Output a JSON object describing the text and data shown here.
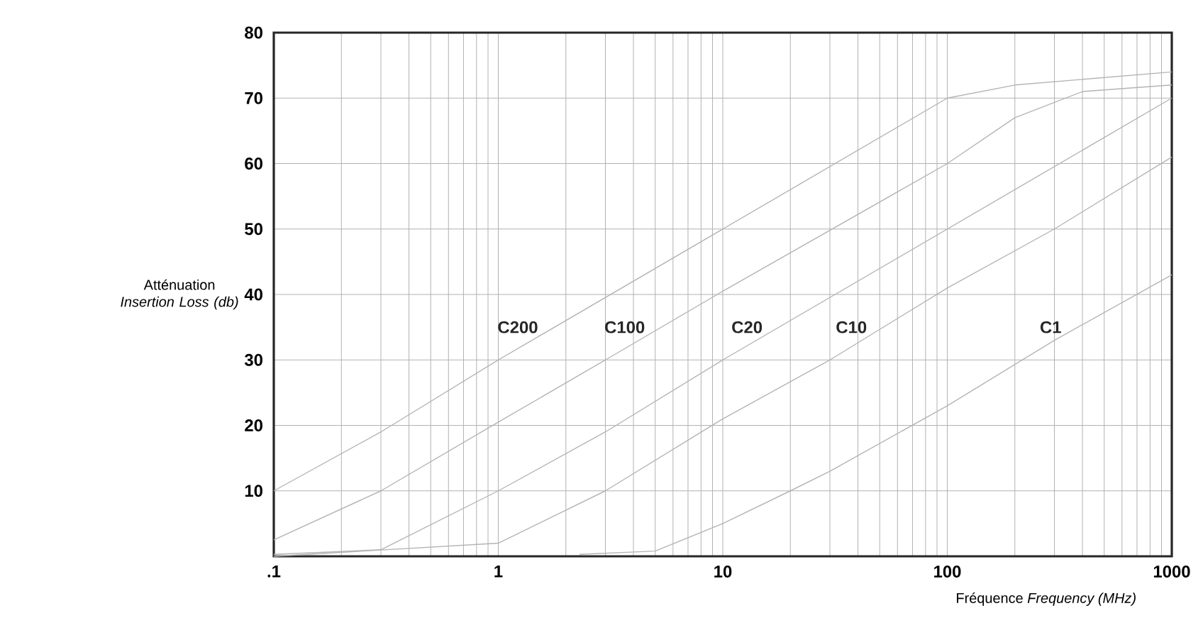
{
  "chart_data": {
    "type": "line",
    "xlabel": "Fréquence *Frequency (MHz)*",
    "ylabel": "Atténuation *Insertion Loss (db)*",
    "log": "x",
    "grid": true,
    "marker": "none",
    "line_style": "solid",
    "xlim": [
      0.1,
      1000
    ],
    "ylim": [
      0,
      80
    ],
    "xticks": [
      {
        "value": 0.1,
        "label": ".1"
      },
      1,
      10,
      100,
      1000
    ],
    "yticks": [
      10,
      20,
      30,
      40,
      50,
      60,
      70,
      80
    ],
    "series": [
      {
        "name": "C200",
        "color": "#b4b4b4",
        "x": [
          0.1,
          0.3,
          1,
          10,
          100,
          200,
          1000
        ],
        "values": [
          10,
          19,
          30,
          50,
          70,
          72,
          74
        ]
      },
      {
        "name": "C100",
        "color": "#b4b4b4",
        "x": [
          0.1,
          0.3,
          1,
          3,
          10,
          100,
          200,
          400,
          1000
        ],
        "values": [
          2.5,
          10,
          20.5,
          30,
          40.5,
          60,
          67,
          71,
          72
        ]
      },
      {
        "name": "C20",
        "color": "#b4b4b4",
        "x": [
          0.1,
          0.3,
          1,
          3,
          10,
          100,
          1000
        ],
        "values": [
          0.3,
          1,
          10,
          19,
          30,
          50,
          70
        ]
      },
      {
        "name": "C10",
        "color": "#b4b4b4",
        "x": [
          0.1,
          1,
          3,
          10,
          30,
          100,
          300,
          1000
        ],
        "values": [
          0,
          2,
          10,
          21,
          30,
          41,
          50,
          61
        ]
      },
      {
        "name": "C1",
        "color": "#b4b4b4",
        "x": [
          2.3,
          5,
          10,
          20,
          30,
          100,
          300,
          1000
        ],
        "values": [
          0.3,
          0.8,
          5,
          10,
          13,
          23,
          33,
          43
        ]
      }
    ]
  }
}
